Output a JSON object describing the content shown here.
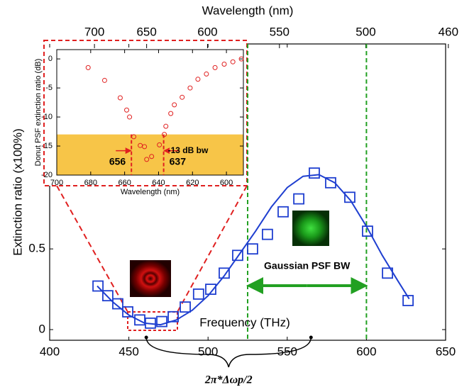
{
  "chart_data": [
    {
      "type": "scatter",
      "xlabel": "Frequency (THz)",
      "ylabel": "Extinction ratio  (x100%)",
      "x2label": "Wavelength (nm)",
      "xlim": [
        400,
        650
      ],
      "xticks": [
        400,
        450,
        500,
        550,
        600,
        650
      ],
      "ylim": [
        -0.066,
        1.77
      ],
      "yticks": [
        0,
        0.5
      ],
      "x2ticks": [
        700,
        650,
        600,
        550,
        500,
        460
      ],
      "series": [
        {
          "color": "#1f3fd0",
          "marker": "square",
          "x": [
            430.5,
            436.7,
            443,
            449.3,
            456.9,
            463.6,
            470.8,
            478,
            485.6,
            494,
            501.7,
            510.2,
            518.7,
            528.1,
            537.5,
            547.4,
            557.3,
            567.1,
            577.4,
            589.5,
            600.7,
            613.3,
            626.3
          ],
          "values": [
            0.27,
            0.21,
            0.16,
            0.11,
            0.06,
            0.04,
            0.05,
            0.08,
            0.14,
            0.22,
            0.25,
            0.35,
            0.46,
            0.5,
            0.59,
            0.73,
            0.81,
            0.97,
            0.91,
            0.82,
            0.61,
            0.35,
            0.18
          ]
        },
        {
          "color": "#1f3fd0",
          "marker": "line",
          "x": [
            430,
            440,
            450,
            460,
            470,
            480,
            490,
            500,
            510,
            520,
            530,
            540,
            550,
            560,
            570,
            580,
            590,
            600,
            610,
            620,
            627
          ],
          "values": [
            0.27,
            0.17,
            0.09,
            0.04,
            0.03,
            0.06,
            0.12,
            0.21,
            0.33,
            0.47,
            0.61,
            0.76,
            0.88,
            0.95,
            0.96,
            0.91,
            0.8,
            0.64,
            0.46,
            0.3,
            0.19
          ]
        }
      ],
      "vlines": [
        525,
        600
      ],
      "vline_color": "#22a022",
      "bw_label": "Gaussian PSF BW",
      "brace": [
        461,
        565
      ],
      "brace_label": "2π*Δωp/2"
    },
    {
      "type": "scatter",
      "xlabel": "Wavelength (nm)",
      "ylabel": "Donut PSF extinction ratio (dB)",
      "xlim": [
        700,
        590
      ],
      "xticks": [
        700,
        680,
        660,
        640,
        620,
        600
      ],
      "ylim": [
        -20,
        1.6
      ],
      "yticks": [
        0,
        -5,
        -10,
        -15,
        -20
      ],
      "band": [
        -13,
        -20
      ],
      "band_color": "#f7c548",
      "series": [
        {
          "color": "#e02020",
          "marker": "circle",
          "x": [
            681.5,
            671.8,
            662.6,
            658.8,
            657.1,
            654.6,
            650.8,
            648.3,
            647,
            644.1,
            639.5,
            636.6,
            635.7,
            632.8,
            630.7,
            626.1,
            621.4,
            616.8,
            611.8,
            606.7,
            601.3,
            596.2,
            591.2
          ],
          "values": [
            -1.5,
            -3.7,
            -6.7,
            -8.8,
            -10,
            -13.4,
            -14.9,
            -15.1,
            -17.3,
            -16.8,
            -14.8,
            -13,
            -11.6,
            -9.4,
            -7.9,
            -6.6,
            -5,
            -3.5,
            -2.6,
            -1.5,
            -0.9,
            -0.5,
            0
          ]
        }
      ],
      "vlines": [
        656,
        637
      ],
      "labels": [
        "656",
        "637"
      ],
      "bw_label": "-13 dB bw"
    }
  ]
}
